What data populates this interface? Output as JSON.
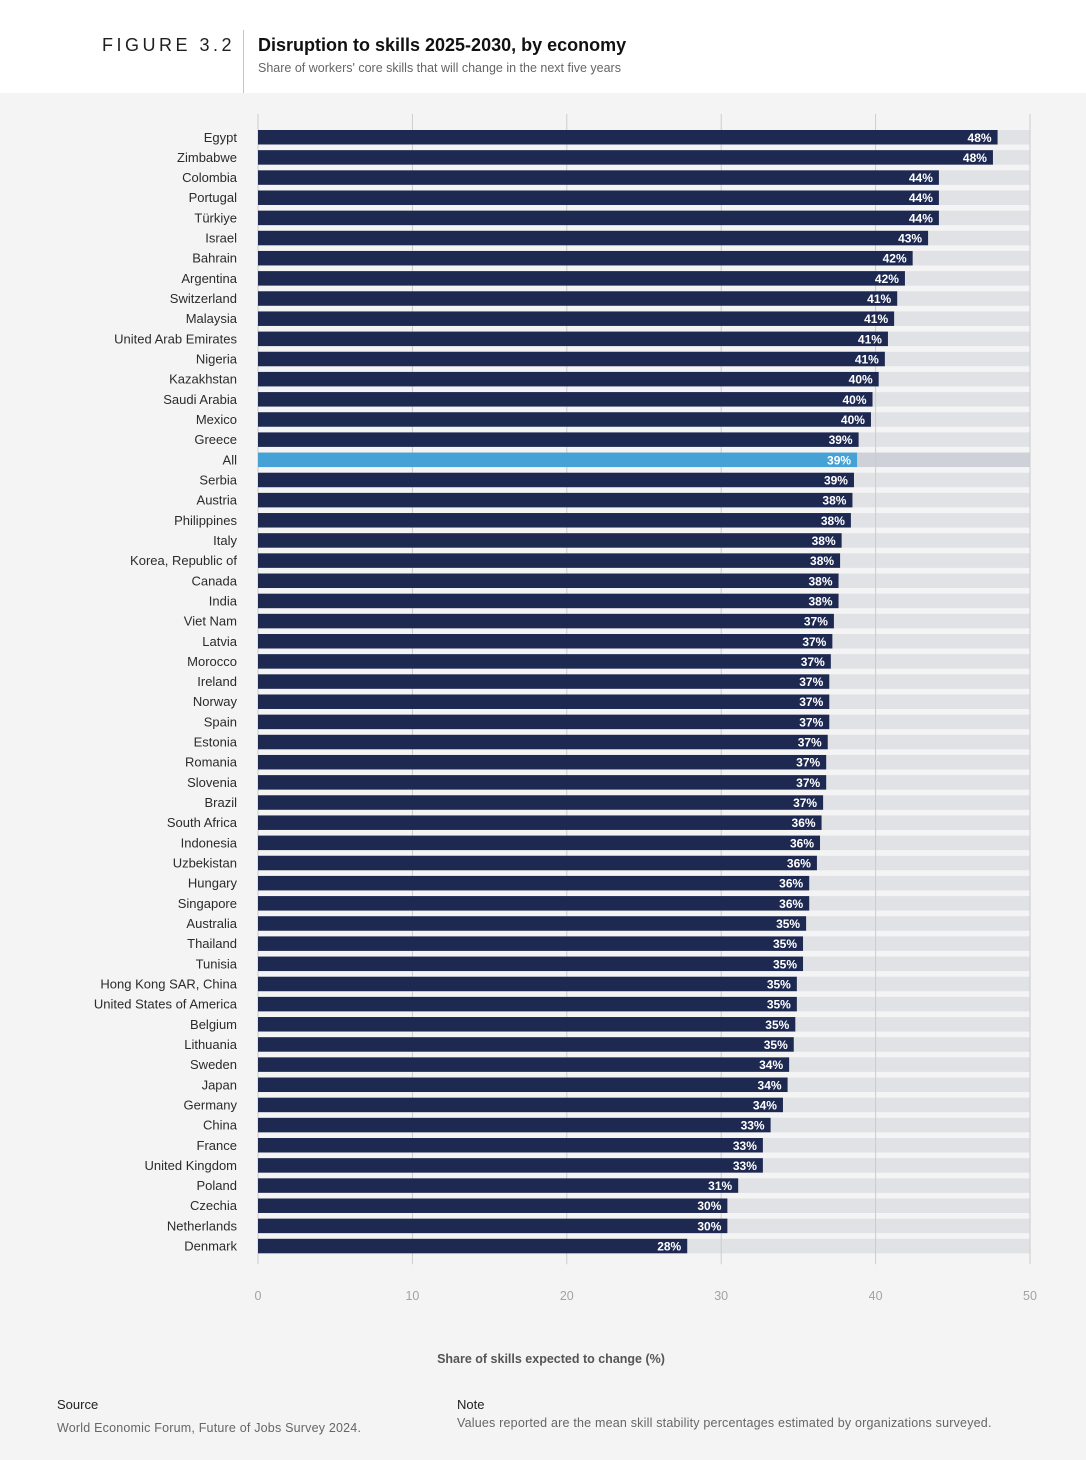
{
  "header": {
    "figure_label": "FIGURE 3.2",
    "title": "Disruption to skills 2025-2030, by economy",
    "subtitle": "Share of workers' core skills that will change in the next five years"
  },
  "footer": {
    "source_heading": "Source",
    "source_text": "World Economic Forum, Future of Jobs Survey 2024.",
    "note_heading": "Note",
    "note_text": "Values reported are the mean skill stability percentages estimated by organizations surveyed."
  },
  "colors": {
    "bar": "#1e2952",
    "highlight": "#45a1d6",
    "track": "#e1e2e6",
    "track_highlight": "#cfd1d8",
    "grid": "#cccccc",
    "tick": "#a3a3a3"
  },
  "chart_data": {
    "type": "bar",
    "orientation": "horizontal",
    "title": "Disruption to skills 2025-2030, by economy",
    "xlabel": "Share of skills expected to change (%)",
    "ylabel": "",
    "xlim": [
      0,
      50
    ],
    "xticks": [
      0,
      10,
      20,
      30,
      40,
      50
    ],
    "grid": true,
    "highlight_category": "All",
    "categories": [
      "Egypt",
      "Zimbabwe",
      "Colombia",
      "Portugal",
      "Türkiye",
      "Israel",
      "Bahrain",
      "Argentina",
      "Switzerland",
      "Malaysia",
      "United Arab Emirates",
      "Nigeria",
      "Kazakhstan",
      "Saudi Arabia",
      "Mexico",
      "Greece",
      "All",
      "Serbia",
      "Austria",
      "Philippines",
      "Italy",
      "Korea, Republic of",
      "Canada",
      "India",
      "Viet Nam",
      "Latvia",
      "Morocco",
      "Ireland",
      "Norway",
      "Spain",
      "Estonia",
      "Romania",
      "Slovenia",
      "Brazil",
      "South Africa",
      "Indonesia",
      "Uzbekistan",
      "Hungary",
      "Singapore",
      "Australia",
      "Thailand",
      "Tunisia",
      "Hong Kong SAR, China",
      "United States of America",
      "Belgium",
      "Lithuania",
      "Sweden",
      "Japan",
      "Germany",
      "China",
      "France",
      "United Kingdom",
      "Poland",
      "Czechia",
      "Netherlands",
      "Denmark"
    ],
    "values": [
      47.9,
      47.6,
      44.1,
      44.1,
      44.1,
      43.4,
      42.4,
      41.9,
      41.4,
      41.2,
      40.8,
      40.6,
      40.2,
      39.8,
      39.7,
      38.9,
      38.8,
      38.6,
      38.5,
      38.4,
      37.8,
      37.7,
      37.6,
      37.6,
      37.3,
      37.2,
      37.1,
      37.0,
      37.0,
      37.0,
      36.9,
      36.8,
      36.8,
      36.6,
      36.5,
      36.4,
      36.2,
      35.7,
      35.7,
      35.5,
      35.3,
      35.3,
      34.9,
      34.9,
      34.8,
      34.7,
      34.4,
      34.3,
      34.0,
      33.2,
      32.7,
      32.7,
      31.1,
      30.4,
      30.4,
      27.8
    ],
    "data_labels": [
      "48%",
      "48%",
      "44%",
      "44%",
      "44%",
      "43%",
      "42%",
      "42%",
      "41%",
      "41%",
      "41%",
      "41%",
      "40%",
      "40%",
      "40%",
      "39%",
      "39%",
      "39%",
      "38%",
      "38%",
      "38%",
      "38%",
      "38%",
      "38%",
      "37%",
      "37%",
      "37%",
      "37%",
      "37%",
      "37%",
      "37%",
      "37%",
      "37%",
      "37%",
      "36%",
      "36%",
      "36%",
      "36%",
      "36%",
      "35%",
      "35%",
      "35%",
      "35%",
      "35%",
      "35%",
      "35%",
      "34%",
      "34%",
      "34%",
      "33%",
      "33%",
      "33%",
      "31%",
      "30%",
      "30%",
      "28%"
    ]
  }
}
